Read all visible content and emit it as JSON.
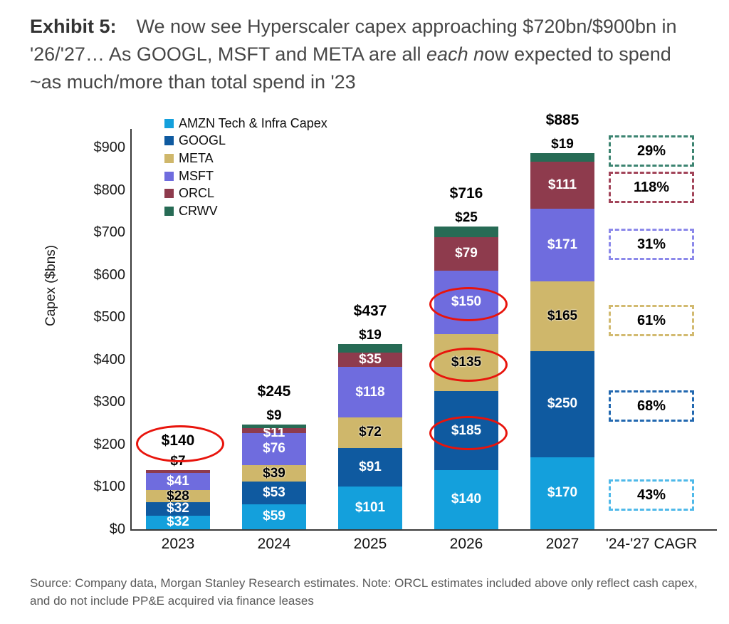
{
  "exhibit": {
    "label": "Exhibit 5:",
    "title_pre": "We now see Hyperscaler capex approaching $720bn/$900bn in '26/'27… As GOOGL, MSFT and META are all ",
    "title_italic": "each n",
    "title_post": "ow expected to spend ~as much/more than total spend in '23"
  },
  "source_note": "Source: Company data, Morgan Stanley Research estimates. Note: ORCL estimates included above only reflect cash capex, and do not include PP&E acquired via finance leases",
  "chart_data": {
    "type": "bar",
    "stacked": true,
    "ylabel": "Capex ($bns)",
    "ylim": [
      0,
      900
    ],
    "ytick_labels": [
      "$0",
      "$100",
      "$200",
      "$300",
      "$400",
      "$500",
      "$600",
      "$700",
      "$800",
      "$900"
    ],
    "grid": false,
    "legend_position": "top-left",
    "categories": [
      "2023",
      "2024",
      "2025",
      "2026",
      "2027"
    ],
    "extra_category": "'24-'27 CAGR",
    "series": [
      {
        "name": "AMZN Tech & Infra Capex",
        "color": "#14A0DC",
        "label_color": "#ffffff",
        "values": [
          32,
          59,
          101,
          140,
          170
        ],
        "cagr": "43%",
        "cagr_box_color": "#4FB9E9"
      },
      {
        "name": "GOOGL",
        "color": "#0F5AA0",
        "label_color": "#ffffff",
        "values": [
          32,
          53,
          91,
          185,
          250
        ],
        "cagr": "68%",
        "cagr_box_color": "#2268B0"
      },
      {
        "name": "META",
        "color": "#CFB76B",
        "label_color": "#000000",
        "values": [
          28,
          39,
          72,
          135,
          165
        ],
        "cagr": "61%",
        "cagr_box_color": "#D2BA70"
      },
      {
        "name": "MSFT",
        "color": "#6F6CDE",
        "label_color": "#ffffff",
        "values": [
          41,
          76,
          118,
          150,
          171
        ],
        "cagr": "31%",
        "cagr_box_color": "#8B88EA"
      },
      {
        "name": "ORCL",
        "color": "#8E3B4D",
        "label_color": "#ffffff",
        "values": [
          7,
          11,
          35,
          79,
          111
        ],
        "cagr": "118%",
        "cagr_box_color": "#A24459"
      },
      {
        "name": "CRWV",
        "color": "#276B55",
        "label_color": "#000000",
        "values": [
          0,
          9,
          19,
          25,
          19
        ],
        "cagr": "29%",
        "cagr_box_color": "#3C8471"
      }
    ],
    "totals": [
      140,
      245,
      437,
      716,
      885
    ],
    "annotations": {
      "red_circle_color": "#E8140C",
      "circled_total_year": "2023",
      "circled_segment_year": "2026",
      "circled_segment_series": [
        "GOOGL",
        "META",
        "MSFT"
      ]
    }
  }
}
